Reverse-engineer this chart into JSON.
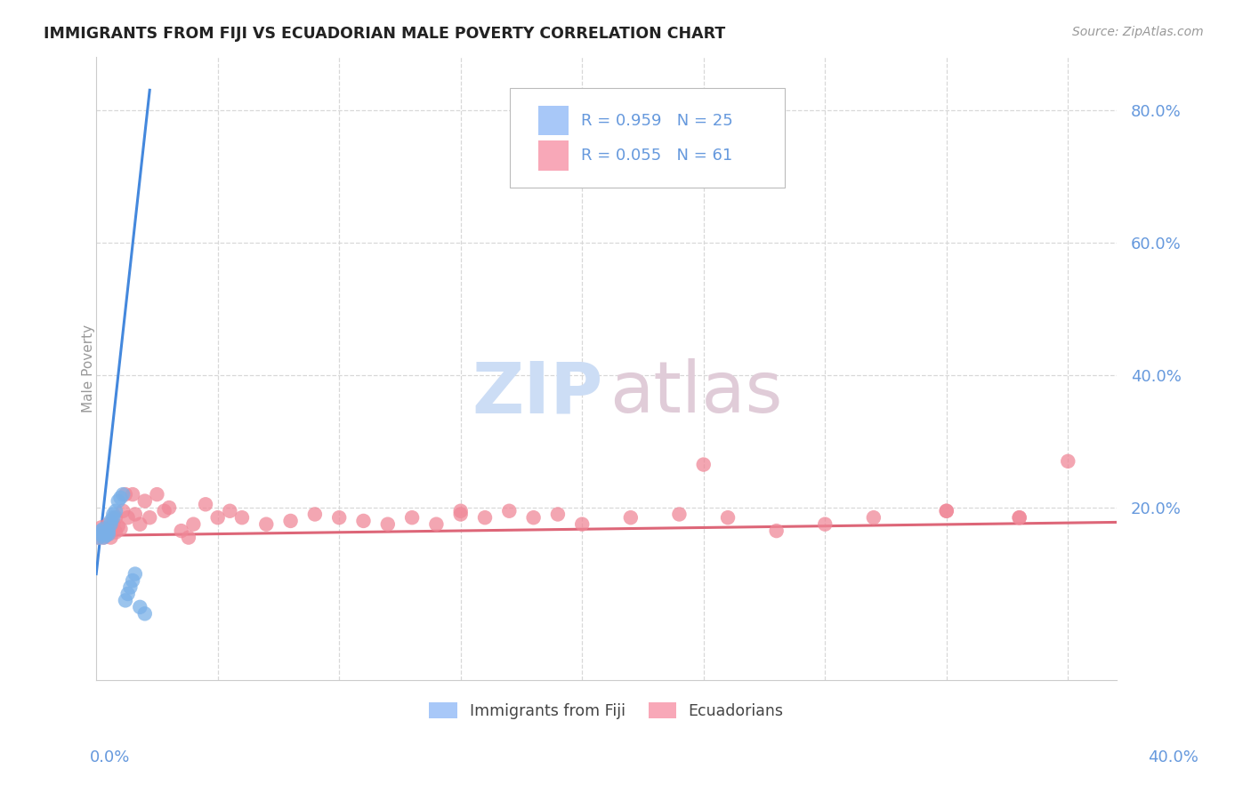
{
  "title": "IMMIGRANTS FROM FIJI VS ECUADORIAN MALE POVERTY CORRELATION CHART",
  "source": "Source: ZipAtlas.com",
  "ylabel": "Male Poverty",
  "ytick_vals": [
    0.2,
    0.4,
    0.6,
    0.8
  ],
  "ytick_labels": [
    "20.0%",
    "40.0%",
    "60.0%",
    "80.0%"
  ],
  "xlim": [
    0.0,
    0.42
  ],
  "ylim": [
    -0.06,
    0.88
  ],
  "fiji_scatter_x": [
    0.001,
    0.002,
    0.002,
    0.003,
    0.003,
    0.003,
    0.004,
    0.004,
    0.005,
    0.005,
    0.006,
    0.006,
    0.007,
    0.007,
    0.008,
    0.009,
    0.01,
    0.011,
    0.012,
    0.013,
    0.014,
    0.015,
    0.016,
    0.018,
    0.02
  ],
  "fiji_scatter_y": [
    0.155,
    0.16,
    0.165,
    0.155,
    0.162,
    0.168,
    0.158,
    0.163,
    0.16,
    0.165,
    0.175,
    0.18,
    0.185,
    0.19,
    0.195,
    0.21,
    0.215,
    0.22,
    0.06,
    0.07,
    0.08,
    0.09,
    0.1,
    0.05,
    0.04
  ],
  "fiji_line_x": [
    0.0,
    0.022
  ],
  "fiji_line_y": [
    0.1,
    0.83
  ],
  "ecuador_scatter_x": [
    0.001,
    0.002,
    0.002,
    0.003,
    0.003,
    0.004,
    0.004,
    0.005,
    0.005,
    0.006,
    0.006,
    0.007,
    0.008,
    0.008,
    0.009,
    0.01,
    0.011,
    0.012,
    0.013,
    0.015,
    0.016,
    0.018,
    0.02,
    0.022,
    0.025,
    0.028,
    0.03,
    0.035,
    0.038,
    0.04,
    0.045,
    0.05,
    0.055,
    0.06,
    0.07,
    0.08,
    0.09,
    0.1,
    0.11,
    0.12,
    0.13,
    0.14,
    0.15,
    0.16,
    0.17,
    0.18,
    0.19,
    0.2,
    0.22,
    0.24,
    0.26,
    0.28,
    0.3,
    0.32,
    0.35,
    0.38,
    0.4,
    0.15,
    0.25,
    0.35,
    0.38
  ],
  "ecuador_scatter_y": [
    0.155,
    0.162,
    0.17,
    0.155,
    0.165,
    0.158,
    0.168,
    0.16,
    0.175,
    0.155,
    0.165,
    0.175,
    0.163,
    0.185,
    0.172,
    0.168,
    0.195,
    0.22,
    0.185,
    0.22,
    0.19,
    0.175,
    0.21,
    0.185,
    0.22,
    0.195,
    0.2,
    0.165,
    0.155,
    0.175,
    0.205,
    0.185,
    0.195,
    0.185,
    0.175,
    0.18,
    0.19,
    0.185,
    0.18,
    0.175,
    0.185,
    0.175,
    0.19,
    0.185,
    0.195,
    0.185,
    0.19,
    0.175,
    0.185,
    0.19,
    0.185,
    0.165,
    0.175,
    0.185,
    0.195,
    0.185,
    0.27,
    0.195,
    0.265,
    0.195,
    0.185
  ],
  "ecuador_line_x": [
    0.0,
    0.42
  ],
  "ecuador_line_y": [
    0.158,
    0.178
  ],
  "fiji_color": "#7ab0e8",
  "ecuador_color": "#f08898",
  "fiji_line_color": "#4488dd",
  "ecuador_line_color": "#dd6678",
  "grid_color": "#d8d8d8",
  "background_color": "#ffffff",
  "tick_color": "#6699dd",
  "legend_fiji_color": "#a8c8f8",
  "legend_ecuador_color": "#f8a8b8"
}
